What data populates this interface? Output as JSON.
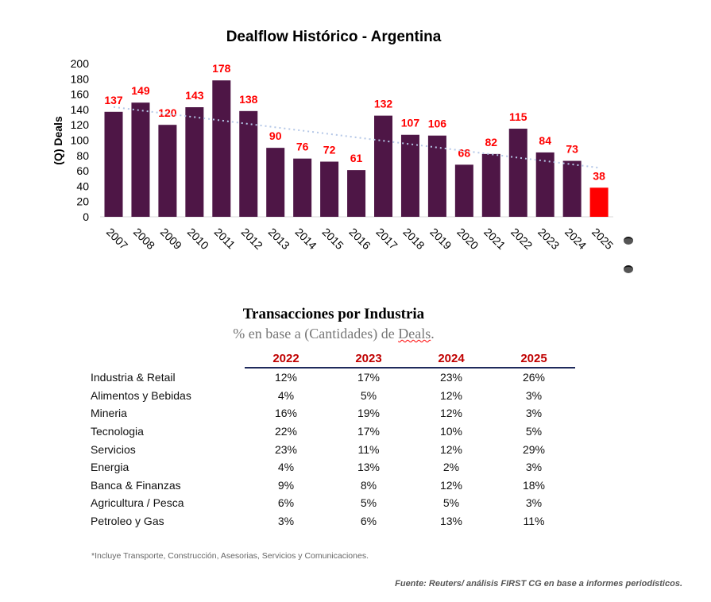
{
  "chart_data": {
    "type": "bar",
    "title": "Dealflow Histórico - Argentina",
    "ylabel": "(Q) Deals",
    "xlabel": "",
    "ylim": [
      0,
      200
    ],
    "yticks": [
      0,
      20,
      40,
      60,
      80,
      100,
      120,
      140,
      160,
      180,
      200
    ],
    "categories": [
      "2007",
      "2008",
      "2009",
      "2010",
      "2011",
      "2012",
      "2013",
      "2014",
      "2015",
      "2016",
      "2017",
      "2018",
      "2019",
      "2020",
      "2021",
      "2022",
      "2023",
      "2024",
      "2025"
    ],
    "values": [
      137,
      149,
      120,
      143,
      178,
      138,
      90,
      76,
      72,
      61,
      132,
      107,
      106,
      68,
      82,
      115,
      84,
      73,
      38
    ],
    "bar_color": "#4e1646",
    "highlight_color": "#ff0000",
    "highlight_category": "2025",
    "label_color": "#ff0000",
    "trendline": "linear, dotted",
    "trendline_color": "#b4c7e7",
    "grid": false
  },
  "table": {
    "title": "Transacciones por Industria",
    "subtitle_a": "% en base a (Cantidades) de ",
    "subtitle_b": "Deals",
    "subtitle_c": ".",
    "columns": [
      "2022",
      "2023",
      "2024",
      "2025"
    ],
    "rows": [
      {
        "label": "Industria & Retail",
        "values": [
          "12%",
          "17%",
          "23%",
          "26%"
        ]
      },
      {
        "label": "Alimentos y Bebidas",
        "values": [
          "4%",
          "5%",
          "12%",
          "3%"
        ]
      },
      {
        "label": "Mineria",
        "values": [
          "16%",
          "19%",
          "12%",
          "3%"
        ]
      },
      {
        "label": "Tecnologia",
        "values": [
          "22%",
          "17%",
          "10%",
          "5%"
        ]
      },
      {
        "label": "Servicios",
        "values": [
          "23%",
          "11%",
          "12%",
          "29%"
        ]
      },
      {
        "label": "Energia",
        "values": [
          "4%",
          "13%",
          "2%",
          "3%"
        ]
      },
      {
        "label": "Banca & Finanzas",
        "values": [
          "9%",
          "8%",
          "12%",
          "18%"
        ]
      },
      {
        "label": "Agricultura / Pesca",
        "values": [
          "6%",
          "5%",
          "5%",
          "3%"
        ]
      },
      {
        "label": "Petroleo y Gas",
        "values": [
          "3%",
          "6%",
          "13%",
          "11%"
        ]
      }
    ]
  },
  "footnote": "*Incluye Transporte, Construcción, Asesorias, Servicios y Comunicaciones.",
  "source": "Fuente: Reuters/ análisis FIRST CG en base a informes periodísticos."
}
